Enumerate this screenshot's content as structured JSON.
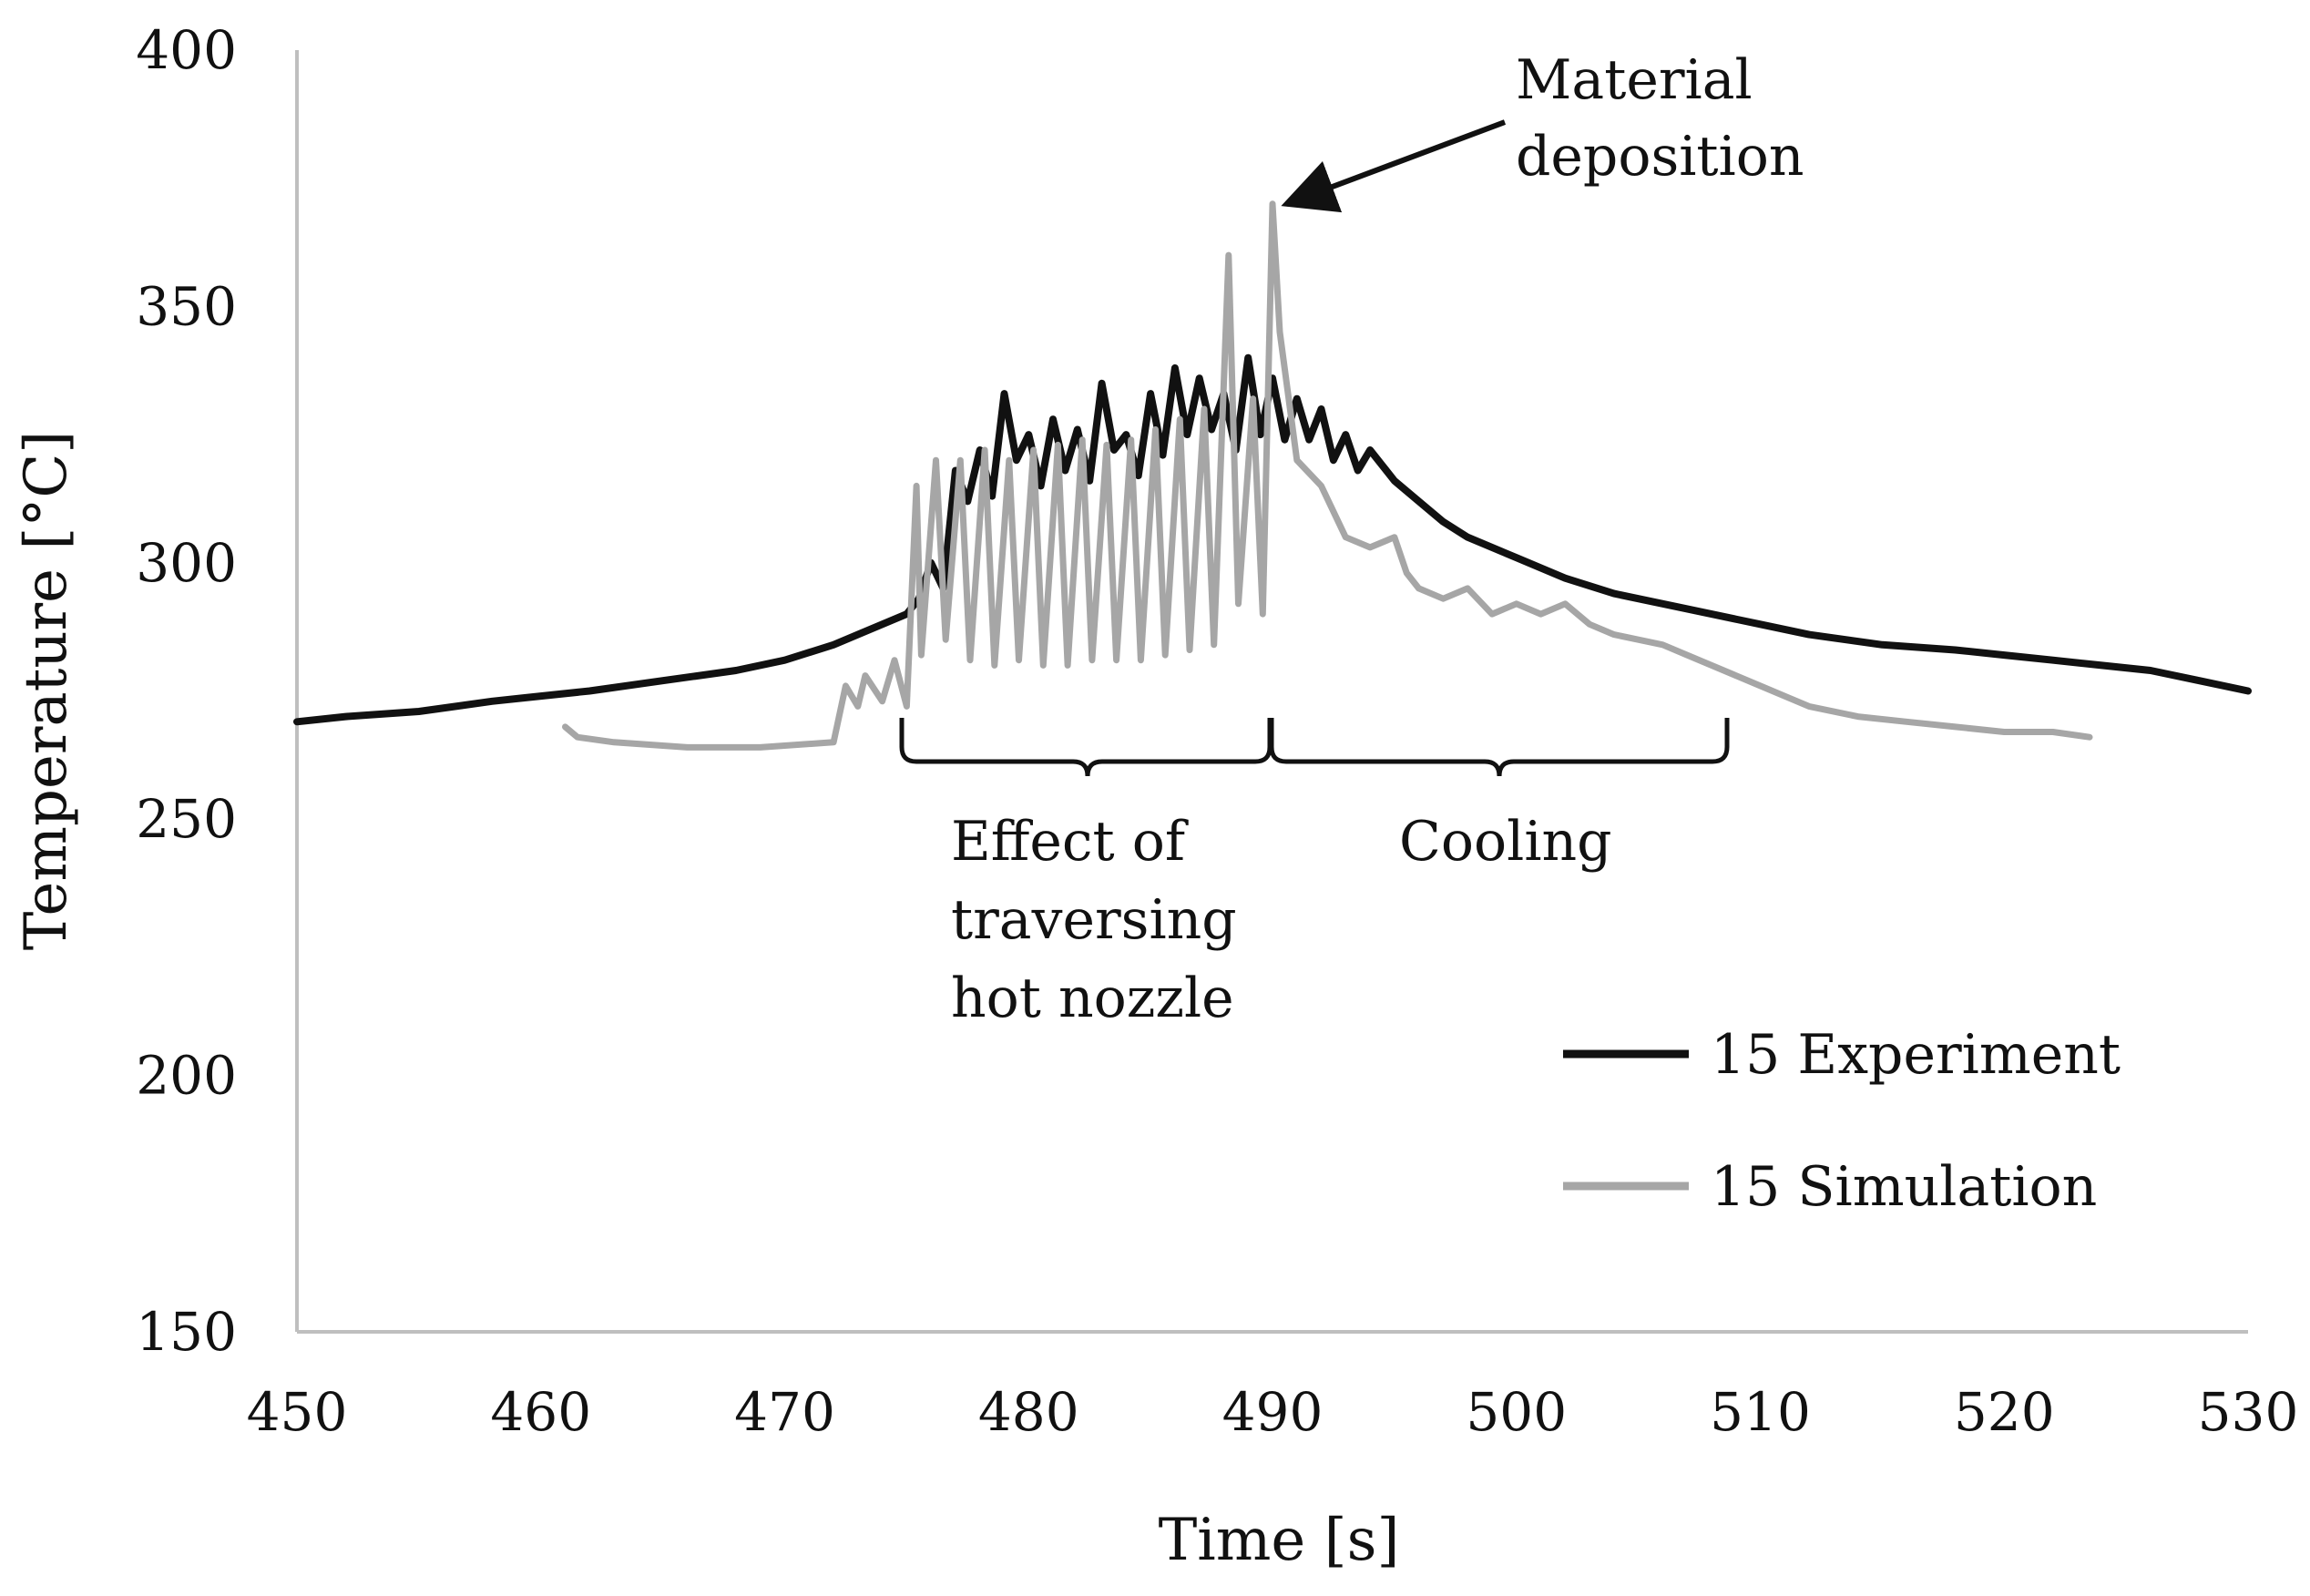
{
  "chart_data": {
    "type": "line",
    "title": "",
    "xlabel": "Time [s]",
    "ylabel": "Temperature [°C]",
    "xlim": [
      450,
      530
    ],
    "ylim": [
      150,
      400
    ],
    "x_ticks": [
      450,
      460,
      470,
      480,
      490,
      500,
      510,
      520,
      530
    ],
    "y_ticks": [
      150,
      200,
      250,
      300,
      350,
      400
    ],
    "x_tick_labels": [
      "450",
      "460",
      "470",
      "480",
      "490",
      "500",
      "510",
      "520",
      "530"
    ],
    "y_tick_labels": [
      "150",
      "200",
      "250",
      "300",
      "350",
      "400"
    ],
    "grid": false,
    "legend_position": "lower-right",
    "series": [
      {
        "name": "15 Experiment",
        "color": "#111111",
        "x": [
          450,
          452,
          455,
          458,
          460,
          462,
          465,
          468,
          470,
          472,
          473,
          474,
          475,
          475.5,
          476,
          476.5,
          477,
          477.5,
          478,
          478.5,
          479,
          479.5,
          480,
          480.5,
          481,
          481.5,
          482,
          482.5,
          483,
          483.5,
          484,
          484.5,
          485,
          485.5,
          486,
          486.5,
          487,
          487.5,
          488,
          488.5,
          489,
          489.5,
          490,
          490.5,
          491,
          491.5,
          492,
          492.5,
          493,
          493.5,
          494,
          495,
          496,
          497,
          498,
          500,
          502,
          504,
          506,
          508,
          510,
          512,
          515,
          518,
          520,
          522,
          524,
          526,
          528,
          530
        ],
        "values": [
          269,
          270,
          271,
          273,
          274,
          275,
          277,
          279,
          281,
          284,
          286,
          288,
          290,
          293,
          300,
          295,
          318,
          312,
          322,
          313,
          333,
          320,
          325,
          315,
          328,
          318,
          326,
          316,
          335,
          322,
          325,
          317,
          333,
          321,
          338,
          325,
          336,
          326,
          333,
          322,
          340,
          325,
          336,
          324,
          332,
          324,
          330,
          320,
          325,
          318,
          322,
          316,
          312,
          308,
          305,
          301,
          297,
          294,
          292,
          290,
          288,
          286,
          284,
          283,
          282,
          281,
          280,
          279,
          277,
          275
        ]
      },
      {
        "name": "15 Simulation",
        "color": "#a6a6a6",
        "x": [
          461,
          461.5,
          463,
          466,
          469,
          472,
          472.5,
          473,
          473.3,
          474,
          474.5,
          475,
          475.4,
          475.6,
          476.2,
          476.6,
          477.2,
          477.6,
          478.2,
          478.6,
          479.2,
          479.6,
          480.2,
          480.6,
          481.2,
          481.6,
          482.2,
          482.6,
          483.2,
          483.6,
          484.2,
          484.6,
          485.2,
          485.6,
          486.2,
          486.6,
          487.2,
          487.6,
          488.2,
          488.6,
          489.2,
          489.6,
          490,
          490.3,
          491,
          492,
          493,
          494,
          495,
          495.5,
          496,
          497,
          498,
          499,
          500,
          501,
          502,
          503,
          504,
          505,
          506,
          507,
          508,
          509,
          510,
          512,
          514,
          516,
          518,
          520,
          522,
          523.5
        ],
        "values": [
          268,
          266,
          265,
          264,
          264,
          265,
          276,
          272,
          278,
          273,
          281,
          272,
          315,
          282,
          320,
          285,
          320,
          281,
          322,
          280,
          320,
          281,
          322,
          280,
          323,
          280,
          324,
          281,
          323,
          281,
          324,
          281,
          326,
          282,
          328,
          283,
          330,
          284,
          360,
          292,
          332,
          290,
          370,
          345,
          320,
          315,
          305,
          303,
          305,
          298,
          295,
          293,
          295,
          290,
          292,
          290,
          292,
          288,
          286,
          285,
          284,
          282,
          280,
          278,
          276,
          272,
          270,
          269,
          268,
          267,
          267,
          266
        ]
      }
    ],
    "annotations": {
      "material_line1": "Material",
      "material_line2": "deposition",
      "effect_line1": "Effect of",
      "effect_line2": "traversing",
      "effect_line3": "hot nozzle",
      "cooling": "Cooling"
    },
    "legend": {
      "experiment": "15 Experiment",
      "simulation": "15 Simulation"
    }
  }
}
